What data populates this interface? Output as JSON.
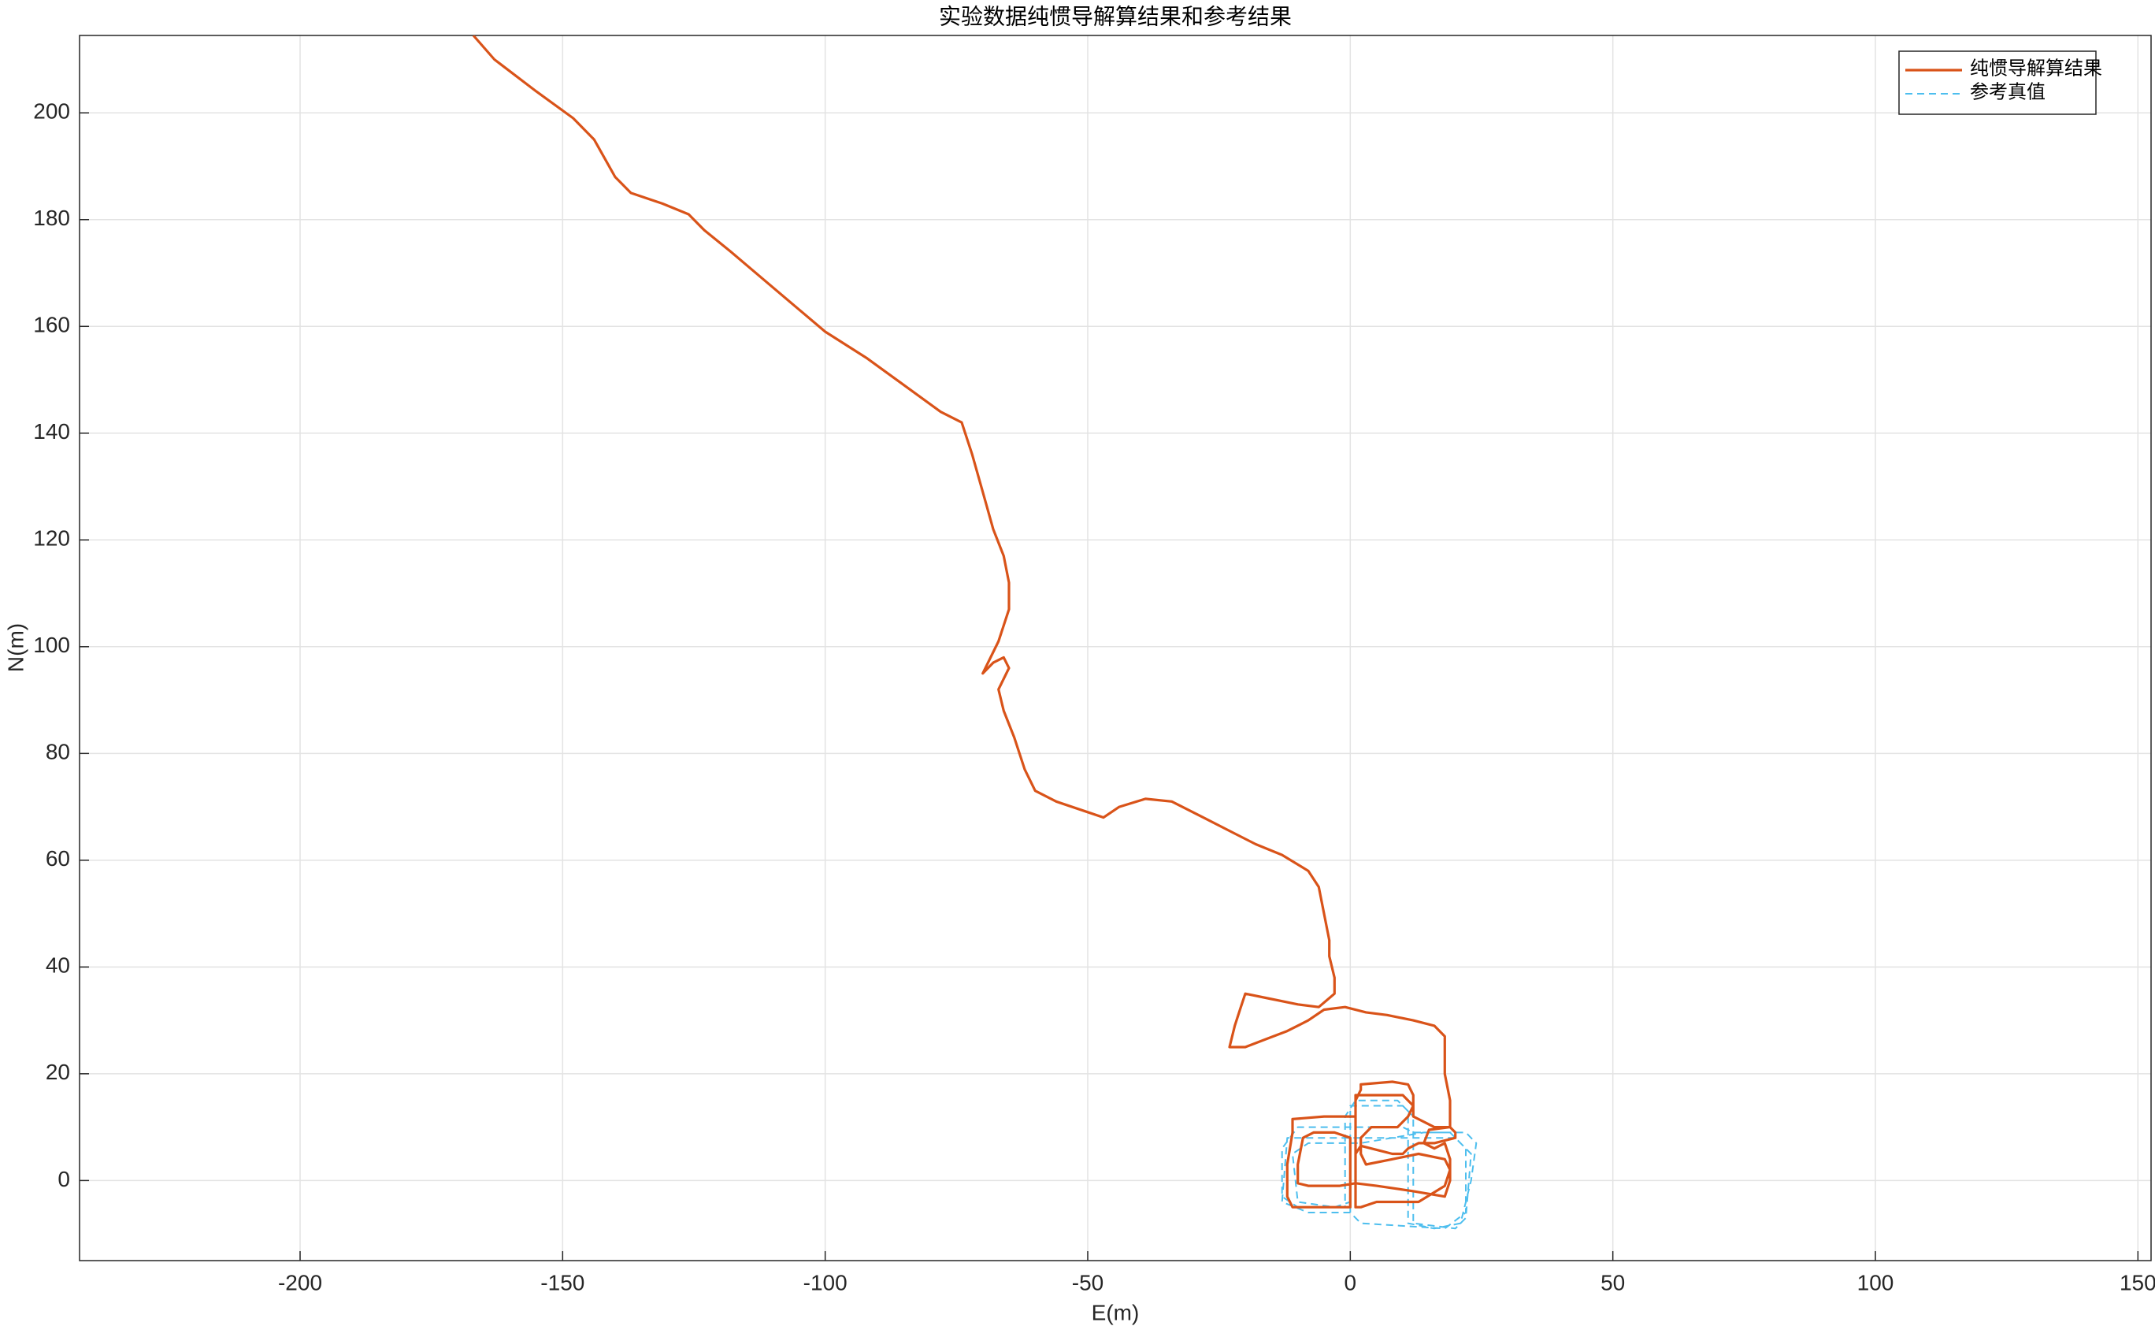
{
  "chart_data": {
    "type": "line",
    "title": "实验数据纯惯导解算结果和参考结果",
    "x_label": "E(m)",
    "y_label": "N(m)",
    "xlim": [
      -242,
      152.5
    ],
    "ylim": [
      -15,
      214.5
    ],
    "xticks": [
      -200,
      -150,
      -100,
      -50,
      0,
      50,
      100,
      150
    ],
    "yticks": [
      0,
      20,
      40,
      60,
      80,
      100,
      120,
      140,
      160,
      180,
      200
    ],
    "grid": true,
    "legend": "northeast",
    "series": [
      {
        "name": "纯惯导解算结果",
        "color": "#d95319",
        "dash": false,
        "x": [
          -167,
          -163,
          -155,
          -148,
          -144,
          -140,
          -137,
          -131,
          -126,
          -123,
          -118,
          -112,
          -106,
          -100,
          -92,
          -85,
          -78,
          -74,
          -72,
          -70,
          -68,
          -66,
          -65,
          -65,
          -67,
          -70,
          -68,
          -66,
          -65,
          -67,
          -66,
          -64,
          -62,
          -60,
          -56,
          -50,
          -47,
          -44,
          -39,
          -34,
          -28,
          -22,
          -18,
          -13,
          -8,
          -6,
          -5,
          -4,
          -4,
          -3,
          -3,
          -6,
          -10,
          -15,
          -20,
          -21,
          -22,
          -23,
          -20,
          -16,
          -12,
          -8,
          -5,
          -1,
          3,
          7,
          12,
          16,
          18,
          18,
          19,
          19,
          15,
          14,
          16,
          18,
          19,
          19,
          18,
          12,
          5,
          1,
          -2,
          -8,
          -10,
          -10,
          -9,
          -7,
          -3,
          0,
          0,
          0,
          0,
          -5,
          -11,
          -12,
          -12,
          -11,
          -11,
          -5,
          0,
          1,
          1,
          1,
          2,
          10,
          12,
          11,
          9,
          4,
          2,
          2,
          3,
          8,
          13,
          18,
          19,
          18,
          13,
          5,
          2,
          1,
          1,
          1,
          1,
          2,
          2,
          8,
          11,
          12,
          12,
          14,
          16,
          19,
          20,
          20,
          16,
          13,
          11,
          10,
          8,
          6,
          4,
          2,
          1
        ],
        "values": [
          214.5,
          210,
          204,
          199,
          195,
          188,
          185,
          183,
          181,
          178,
          174,
          169,
          164,
          159,
          154,
          149,
          144,
          142,
          136,
          129,
          122,
          117,
          112,
          107,
          101,
          95,
          97,
          98,
          96,
          92,
          88,
          83,
          77,
          73,
          71,
          69,
          68,
          70,
          71.5,
          71,
          68,
          65,
          63,
          61,
          58,
          55,
          50,
          45,
          42,
          38,
          35,
          32.5,
          33,
          34,
          35,
          32,
          29,
          25,
          25,
          26.5,
          28,
          30,
          32,
          32.5,
          31.5,
          31,
          30,
          29,
          27,
          20,
          15,
          10,
          9.5,
          7,
          6,
          7,
          4,
          0,
          -3,
          -2,
          -1,
          -0.5,
          -1,
          -1,
          -0.5,
          3,
          8,
          9,
          9,
          8,
          4,
          -4,
          -5,
          -5,
          -5,
          -3,
          3,
          9,
          11.5,
          12,
          12,
          12,
          14,
          16,
          16,
          16,
          14,
          12,
          10,
          10,
          8,
          5,
          3,
          4,
          5,
          4,
          2,
          -1,
          -4,
          -4,
          -5,
          -5,
          0,
          8,
          15,
          17,
          18,
          18.5,
          18,
          16,
          12,
          11,
          10,
          10,
          9,
          8,
          7,
          7,
          6,
          5,
          5,
          5.5,
          6,
          6.5,
          5
        ]
      },
      {
        "name": "参考真值",
        "color": "#4dbeee",
        "dash": true,
        "x": [
          0,
          0,
          10,
          12,
          12,
          20,
          22,
          23,
          20,
          0,
          -12,
          -13,
          -8,
          0,
          2,
          18,
          22,
          22,
          19,
          12,
          10,
          2,
          -10,
          -13,
          -13,
          -10,
          -1,
          -1,
          1,
          9,
          11,
          11,
          16,
          21,
          23,
          24,
          22,
          14,
          2,
          -8,
          -11,
          -10,
          -3,
          0
        ],
        "values": [
          -6,
          14,
          14,
          12,
          -8,
          -9,
          -7,
          5,
          8,
          8,
          8,
          -4,
          -6,
          -6,
          -8,
          -9,
          -6,
          6,
          9,
          9,
          10,
          10,
          10,
          6,
          -3,
          -5,
          -5,
          12,
          15,
          15,
          13,
          -8,
          -9,
          -8,
          0,
          7,
          9,
          9,
          7,
          7,
          5,
          -4,
          -5,
          -4
        ]
      }
    ]
  }
}
